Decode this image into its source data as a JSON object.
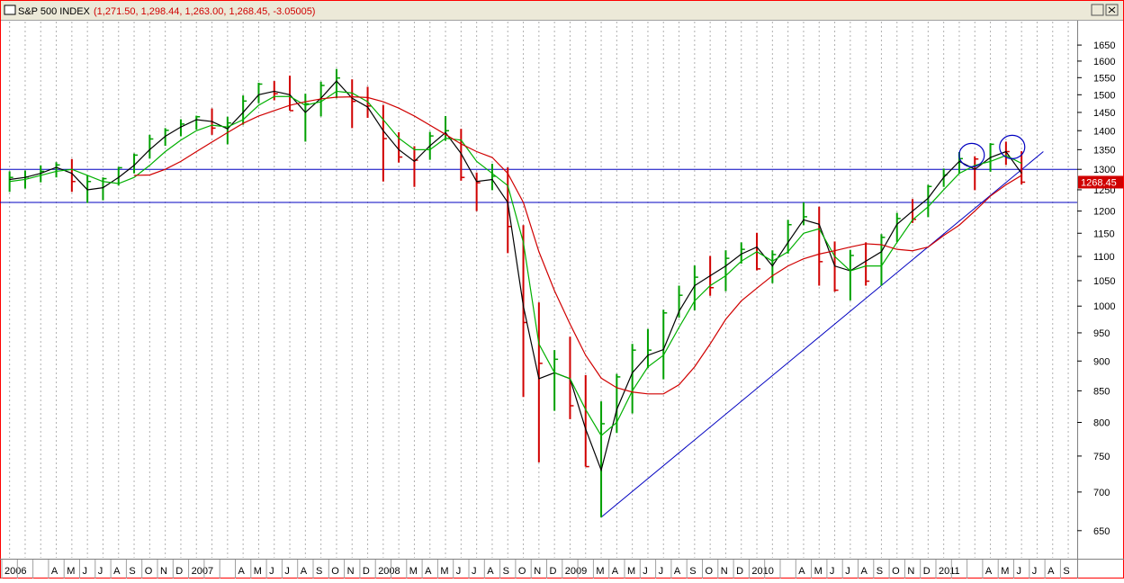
{
  "chart_data": {
    "type": "ohlc",
    "title": "S&P 500 INDEX",
    "subtitle": "(1,271.50, 1,298.44, 1,263.00, 1,268.45, -3.05005)",
    "log_scale": true,
    "ylim": [
      617,
      1726
    ],
    "yticks": [
      650,
      700,
      750,
      800,
      850,
      900,
      950,
      1000,
      1050,
      1100,
      1150,
      1200,
      1250,
      1300,
      1350,
      1400,
      1450,
      1500,
      1550,
      1600,
      1650
    ],
    "up_color": "#00a000",
    "down_color": "#d00000",
    "categories": [
      "2006",
      null,
      null,
      "A",
      "M",
      "J",
      "J",
      "A",
      "S",
      "O",
      "N",
      "D",
      "2007",
      null,
      null,
      "A",
      "M",
      "J",
      "J",
      "A",
      "S",
      "O",
      "N",
      "D",
      "2008",
      null,
      "M",
      "A",
      "M",
      "J",
      "J",
      "A",
      "S",
      "O",
      "N",
      "D",
      "2009",
      null,
      "M",
      "A",
      "M",
      "J",
      "J",
      "A",
      "S",
      "O",
      "N",
      "D",
      "2010",
      null,
      null,
      "A",
      "M",
      "J",
      "J",
      "A",
      "S",
      "O",
      "N",
      "D",
      "2011",
      null,
      null,
      "A",
      "M",
      "J",
      "J",
      "A",
      "S"
    ],
    "high": [
      1295,
      1297,
      1310,
      1318,
      1326,
      1285,
      1280,
      1306,
      1340,
      1389,
      1407,
      1431,
      1441,
      1461,
      1438,
      1498,
      1535,
      1540,
      1556,
      1503,
      1538,
      1576,
      1545,
      1523,
      1471,
      1396,
      1359,
      1397,
      1440,
      1405,
      1292,
      1314,
      1305,
      1168,
      1007,
      919,
      943,
      876,
      833,
      878,
      930,
      957,
      993,
      1040,
      1081,
      1101,
      1113,
      1130,
      1151,
      1113,
      1180,
      1220,
      1210,
      1132,
      1114,
      1130,
      1148,
      1196,
      1228,
      1262,
      1302,
      1344,
      1333,
      1367,
      1371,
      1346,
      null,
      null,
      null
    ],
    "low": [
      1245,
      1253,
      1268,
      1280,
      1245,
      1219,
      1225,
      1260,
      1290,
      1327,
      1360,
      1385,
      1403,
      1389,
      1364,
      1416,
      1476,
      1484,
      1455,
      1371,
      1439,
      1490,
      1407,
      1435,
      1270,
      1317,
      1257,
      1324,
      1373,
      1272,
      1200,
      1249,
      1107,
      840,
      741,
      818,
      805,
      735,
      667,
      784,
      814,
      888,
      869,
      978,
      992,
      1020,
      1029,
      1085,
      1071,
      1045,
      1106,
      1168,
      1040,
      1028,
      1011,
      1040,
      1040,
      1131,
      1173,
      1186,
      1257,
      1289,
      1249,
      1294,
      1311,
      1263,
      null,
      null,
      null
    ],
    "close": [
      1280,
      1281,
      1295,
      1311,
      1270,
      1270,
      1277,
      1304,
      1336,
      1378,
      1401,
      1418,
      1438,
      1407,
      1421,
      1482,
      1531,
      1503,
      1455,
      1474,
      1527,
      1549,
      1481,
      1468,
      1379,
      1331,
      1323,
      1386,
      1400,
      1280,
      1267,
      1283,
      1165,
      969,
      896,
      903,
      826,
      735,
      798,
      873,
      919,
      919,
      987,
      1021,
      1057,
      1036,
      1096,
      1115,
      1074,
      1104,
      1169,
      1187,
      1089,
      1031,
      1102,
      1049,
      1141,
      1183,
      1181,
      1258,
      1286,
      1327,
      1326,
      1364,
      1345,
      1268.45,
      null,
      null,
      null
    ],
    "series": [
      {
        "color": "#000000",
        "values": [
          1275,
          1280,
          1290,
          1305,
          1290,
          1250,
          1255,
          1280,
          1310,
          1350,
          1385,
          1410,
          1430,
          1425,
          1405,
          1450,
          1500,
          1510,
          1500,
          1450,
          1490,
          1540,
          1490,
          1465,
          1400,
          1350,
          1320,
          1360,
          1395,
          1340,
          1270,
          1275,
          1220,
          1000,
          870,
          880,
          870,
          790,
          730,
          820,
          880,
          910,
          920,
          990,
          1040,
          1060,
          1080,
          1105,
          1120,
          1080,
          1130,
          1180,
          1170,
          1080,
          1070,
          1090,
          1110,
          1170,
          1200,
          1230,
          1280,
          1320,
          1300,
          1330,
          1345,
          1290,
          null,
          null,
          null
        ]
      },
      {
        "color": "#00b000",
        "values": [
          1270,
          1275,
          1285,
          1295,
          1300,
          1285,
          1270,
          1265,
          1280,
          1310,
          1345,
          1375,
          1400,
          1415,
          1410,
          1430,
          1470,
          1495,
          1495,
          1470,
          1480,
          1510,
          1505,
          1480,
          1430,
          1380,
          1350,
          1350,
          1380,
          1375,
          1320,
          1290,
          1260,
          1130,
          930,
          880,
          870,
          820,
          780,
          800,
          850,
          890,
          910,
          960,
          1010,
          1040,
          1060,
          1090,
          1110,
          1090,
          1110,
          1150,
          1160,
          1100,
          1070,
          1080,
          1080,
          1130,
          1180,
          1210,
          1250,
          1290,
          1310,
          1320,
          1335,
          1315,
          null,
          null,
          null
        ]
      },
      {
        "color": "#d00000",
        "values": [
          null,
          null,
          null,
          null,
          null,
          null,
          null,
          null,
          1285,
          1286,
          1300,
          1320,
          1345,
          1370,
          1395,
          1420,
          1440,
          1455,
          1470,
          1480,
          1488,
          1493,
          1494,
          1492,
          1480,
          1462,
          1440,
          1415,
          1390,
          1365,
          1345,
          1330,
          1290,
          1220,
          1110,
          1030,
          966,
          910,
          871,
          855,
          848,
          845,
          845,
          860,
          890,
          930,
          975,
          1010,
          1035,
          1060,
          1080,
          1095,
          1105,
          1112,
          1120,
          1127,
          1125,
          1115,
          1112,
          1120,
          1145,
          1168,
          1200,
          1235,
          1262,
          1285,
          null,
          null,
          null
        ]
      }
    ],
    "hlines": [
      1300,
      1220
    ],
    "hline_color": "#0000c0",
    "trendline": {
      "x": [
        38.5,
        66.9
      ],
      "values": [
        667,
        1345
      ],
      "color": "#0000c0"
    },
    "circles": [
      {
        "x": 62.3,
        "value": 1336
      },
      {
        "x": 64.9,
        "value": 1357
      }
    ],
    "last_value": 1268.45,
    "last_color": "#d00000"
  }
}
